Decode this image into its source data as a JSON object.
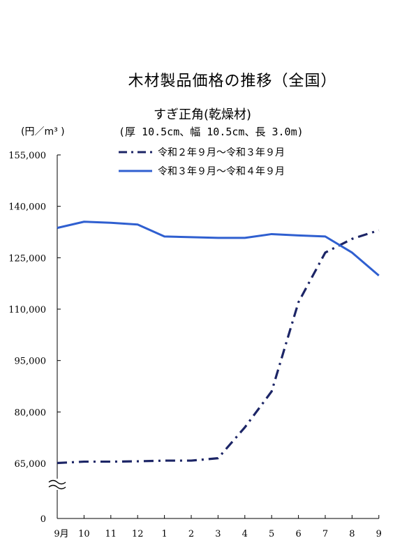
{
  "header": {
    "title": "木材製品価格の推移（全国）",
    "subtitle": "すぎ正角(乾燥材)",
    "unit": "(円／m³ )",
    "spec": "(厚 10.5cm、幅 10.5cm、長 3.0m)"
  },
  "chart_data": {
    "type": "line",
    "title": "木材製品価格の推移（全国）",
    "subtitle": "すぎ正角(乾燥材)",
    "ylabel": "(円／m³ )",
    "categories": [
      "9月",
      "10",
      "11",
      "12",
      "1",
      "2",
      "3",
      "4",
      "5",
      "6",
      "7",
      "8",
      "9"
    ],
    "yticks": [
      "0",
      "65,000",
      "80,000",
      "95,000",
      "110,000",
      "125,000",
      "140,000",
      "155,000"
    ],
    "ylim": [
      65000,
      155000
    ],
    "axis_break": true,
    "legend_position": "top-center",
    "series": [
      {
        "name": "令和２年９月～令和３年９月",
        "style": "dash-dot",
        "color": "#1c2566",
        "values": [
          65100,
          65500,
          65500,
          65600,
          65800,
          65800,
          66500,
          75500,
          86000,
          112000,
          126500,
          130500,
          133000
        ]
      },
      {
        "name": "令和３年９月～令和４年９月",
        "style": "solid",
        "color": "#2f5fd0",
        "values": [
          133700,
          135500,
          135200,
          134700,
          131200,
          131000,
          130800,
          130800,
          131900,
          131500,
          131200,
          126500,
          119800
        ]
      }
    ]
  }
}
